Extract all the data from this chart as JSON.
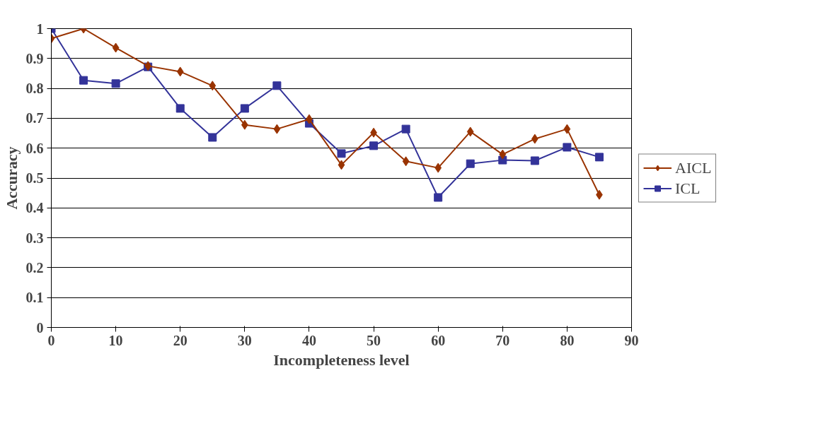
{
  "chart_data": {
    "type": "line",
    "xlabel": "Incompleteness level",
    "ylabel": "Accuracy",
    "x": [
      0,
      5,
      10,
      15,
      20,
      25,
      30,
      35,
      40,
      45,
      50,
      55,
      60,
      65,
      70,
      75,
      80,
      85
    ],
    "series": [
      {
        "name": "AICL",
        "color": "#993300",
        "marker": "diamond",
        "values": [
          0.967,
          1.0,
          0.936,
          0.875,
          0.856,
          0.809,
          0.678,
          0.664,
          0.697,
          0.544,
          0.652,
          0.556,
          0.534,
          0.655,
          0.579,
          0.631,
          0.664,
          0.444
        ]
      },
      {
        "name": "ICL",
        "color": "#333399",
        "marker": "square",
        "values": [
          1.0,
          0.827,
          0.816,
          0.872,
          0.733,
          0.636,
          0.733,
          0.809,
          0.683,
          0.582,
          0.608,
          0.664,
          0.435,
          0.548,
          0.56,
          0.558,
          0.603,
          0.57
        ]
      }
    ],
    "xlim": [
      0,
      90
    ],
    "xticks": [
      0,
      10,
      20,
      30,
      40,
      50,
      60,
      70,
      80,
      90
    ],
    "ylim": [
      0,
      1
    ],
    "yticks": [
      0,
      0.1,
      0.2,
      0.3,
      0.4,
      0.5,
      0.6,
      0.7,
      0.8,
      0.9,
      1
    ],
    "grid": "y",
    "legend": "right",
    "line_style": "solid"
  }
}
